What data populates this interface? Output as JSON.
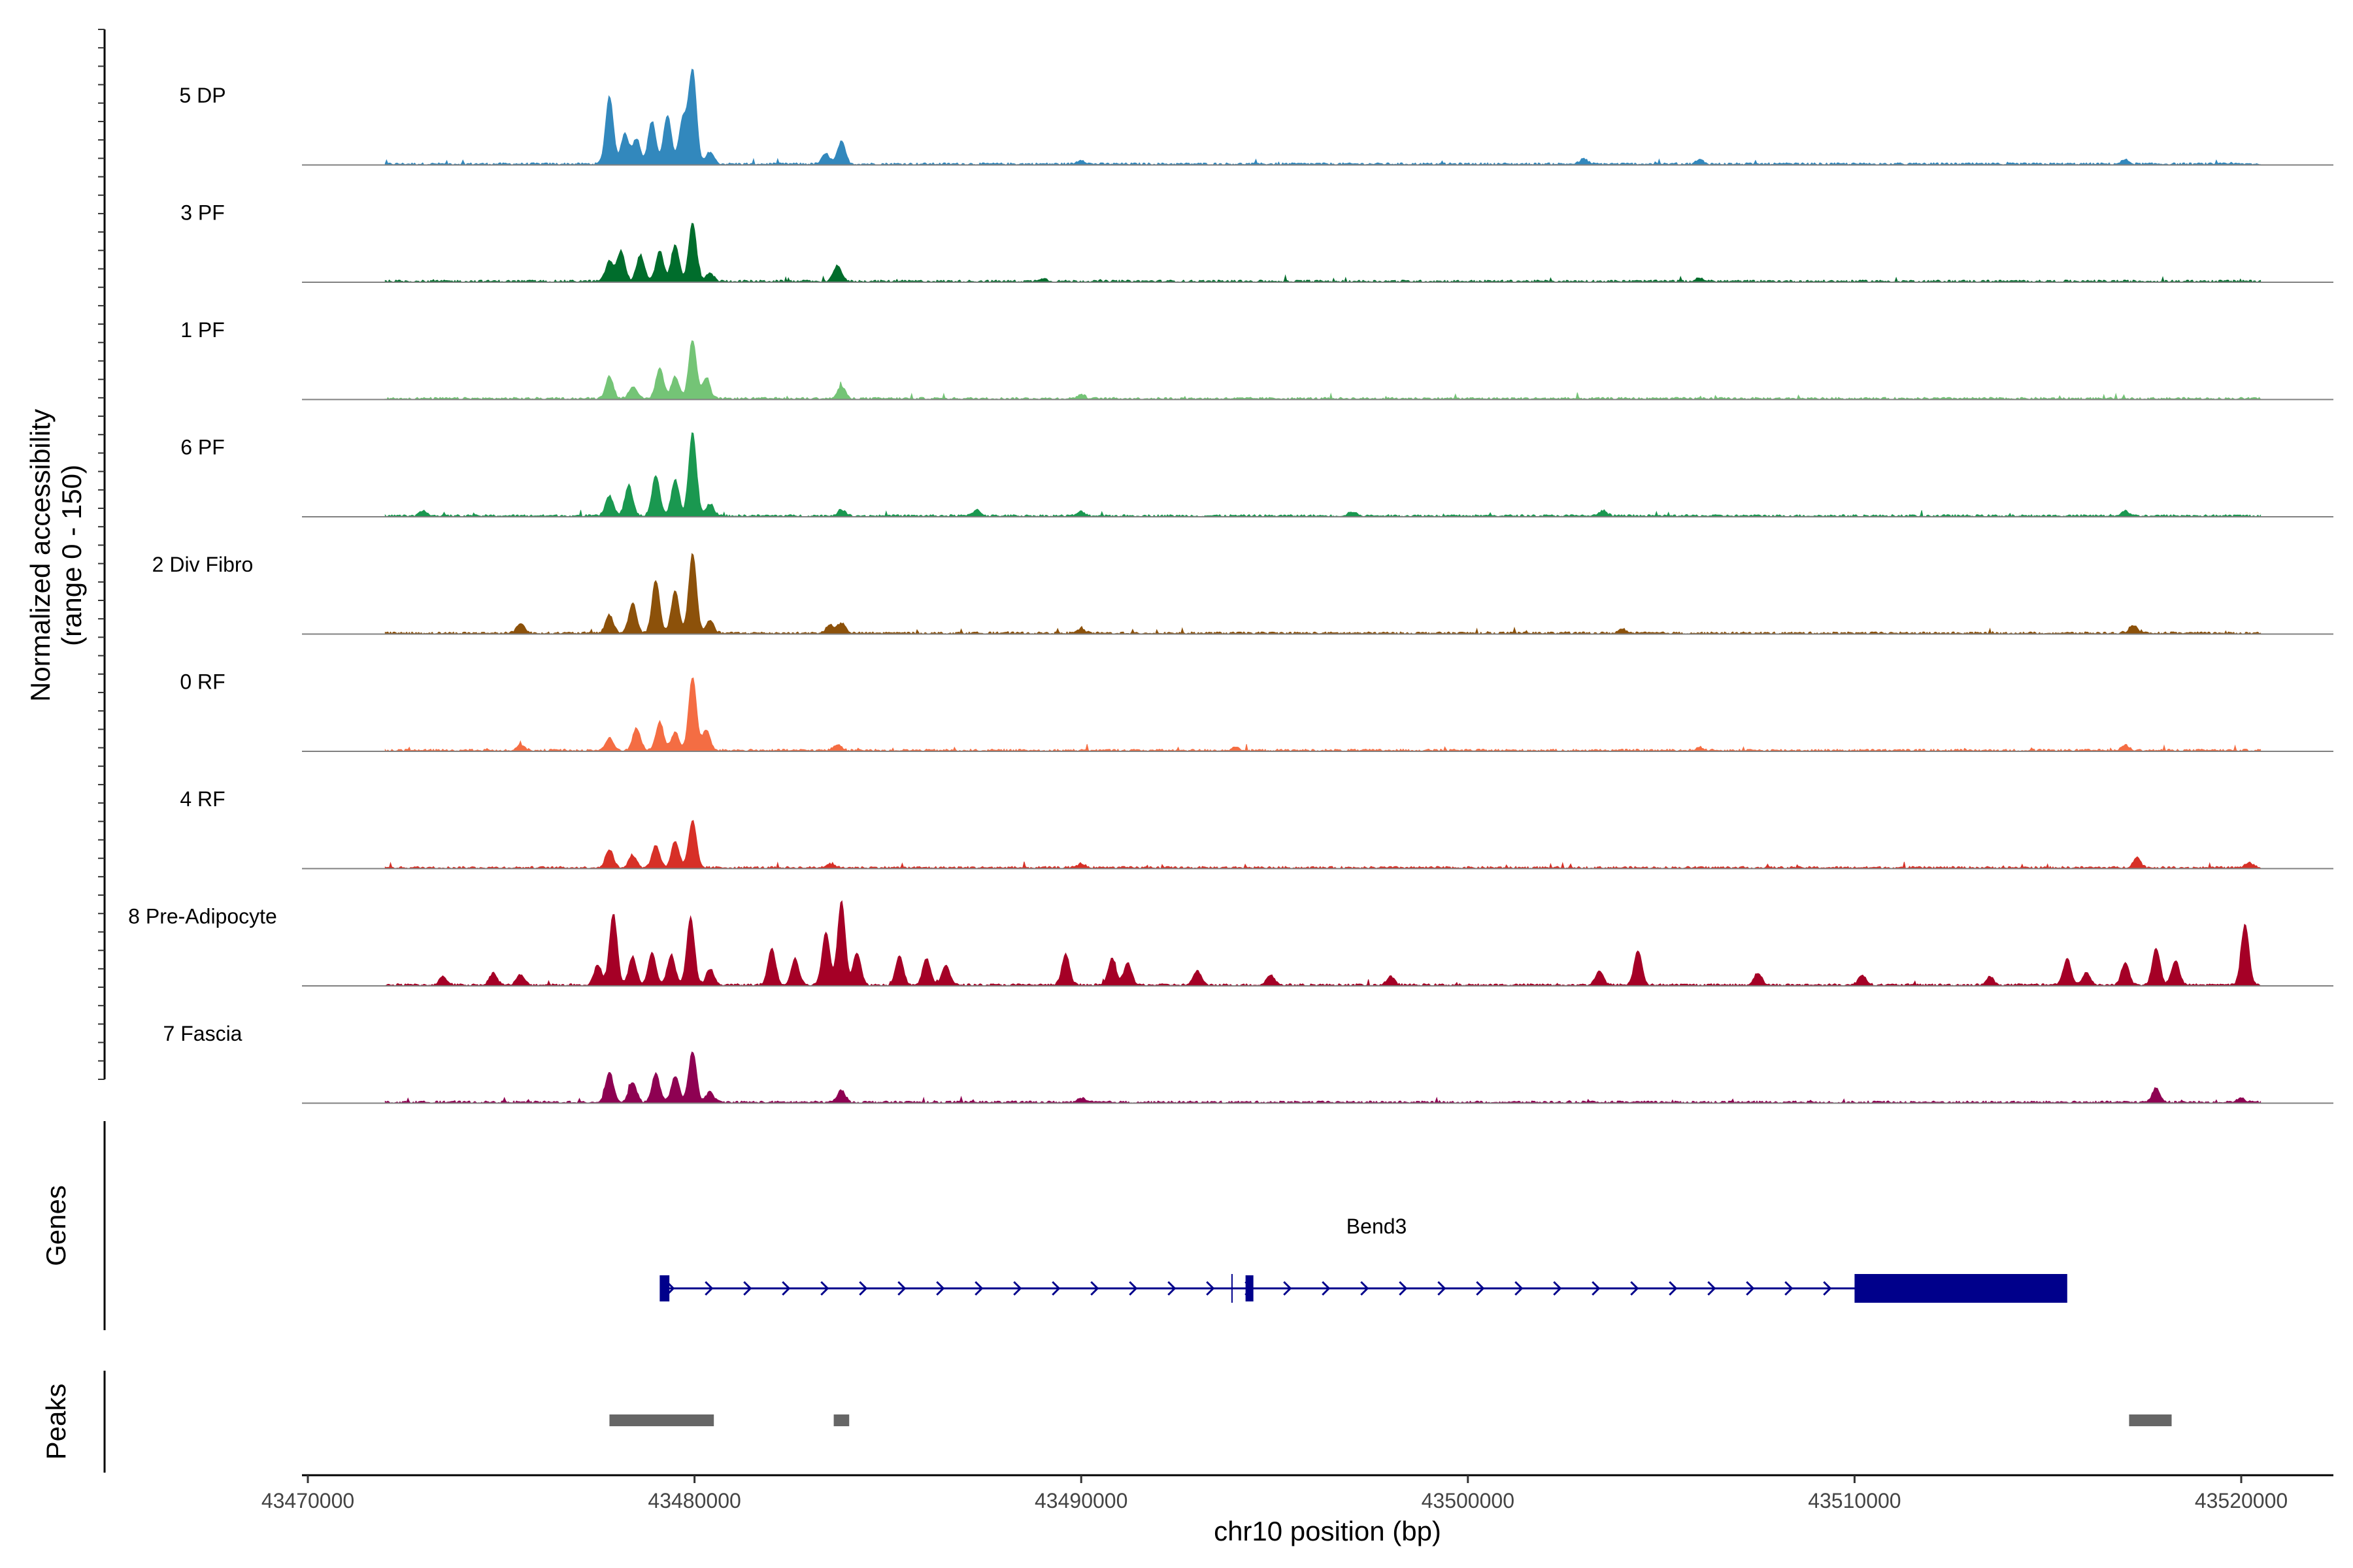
{
  "chart_data": {
    "type": "area",
    "title": "",
    "xlabel": "chr10 position (bp)",
    "ylabel": "Normalized accessibility\n(range 0 - 150)",
    "y_range": [
      0,
      150
    ],
    "xlim": [
      43470000,
      43523000
    ],
    "x_ticks": [
      43470000,
      43480000,
      43490000,
      43500000,
      43510000,
      43520000
    ],
    "x_tick_labels": [
      "43470000",
      "43480000",
      "43490000",
      "43500000",
      "43510000",
      "43520000"
    ],
    "tracks": [
      {
        "name": "5 DP",
        "color": "#3288bd",
        "peaks": [
          {
            "x": 43477800,
            "y": 66
          },
          {
            "x": 43478200,
            "y": 30
          },
          {
            "x": 43478500,
            "y": 25
          },
          {
            "x": 43478900,
            "y": 42
          },
          {
            "x": 43479300,
            "y": 48
          },
          {
            "x": 43479700,
            "y": 45
          },
          {
            "x": 43479950,
            "y": 92
          },
          {
            "x": 43480400,
            "y": 12
          },
          {
            "x": 43483400,
            "y": 10
          },
          {
            "x": 43483800,
            "y": 22
          },
          {
            "x": 43490000,
            "y": 4
          },
          {
            "x": 43503000,
            "y": 5
          },
          {
            "x": 43506000,
            "y": 4
          },
          {
            "x": 43517000,
            "y": 4
          }
        ]
      },
      {
        "name": "3 PF",
        "color": "#006d2c",
        "peaks": [
          {
            "x": 43477800,
            "y": 20
          },
          {
            "x": 43478100,
            "y": 30
          },
          {
            "x": 43478600,
            "y": 26
          },
          {
            "x": 43479100,
            "y": 30
          },
          {
            "x": 43479500,
            "y": 36
          },
          {
            "x": 43479950,
            "y": 58
          },
          {
            "x": 43480400,
            "y": 8
          },
          {
            "x": 43483700,
            "y": 16
          },
          {
            "x": 43489000,
            "y": 3
          },
          {
            "x": 43506000,
            "y": 3
          }
        ]
      },
      {
        "name": "1 PF",
        "color": "#74c476",
        "peaks": [
          {
            "x": 43477800,
            "y": 22
          },
          {
            "x": 43478400,
            "y": 12
          },
          {
            "x": 43479100,
            "y": 30
          },
          {
            "x": 43479500,
            "y": 22
          },
          {
            "x": 43479950,
            "y": 58
          },
          {
            "x": 43480300,
            "y": 20
          },
          {
            "x": 43483800,
            "y": 12
          },
          {
            "x": 43490000,
            "y": 4
          }
        ]
      },
      {
        "name": "6 PF",
        "color": "#1a9850",
        "peaks": [
          {
            "x": 43477800,
            "y": 20
          },
          {
            "x": 43478300,
            "y": 30
          },
          {
            "x": 43479000,
            "y": 40
          },
          {
            "x": 43479500,
            "y": 36
          },
          {
            "x": 43479950,
            "y": 82
          },
          {
            "x": 43480400,
            "y": 12
          },
          {
            "x": 43473000,
            "y": 5
          },
          {
            "x": 43483800,
            "y": 6
          },
          {
            "x": 43487300,
            "y": 6
          },
          {
            "x": 43490000,
            "y": 4
          },
          {
            "x": 43497000,
            "y": 4
          },
          {
            "x": 43503500,
            "y": 5
          },
          {
            "x": 43517000,
            "y": 5
          }
        ]
      },
      {
        "name": "2 Div Fibro",
        "color": "#8c510a",
        "peaks": [
          {
            "x": 43475500,
            "y": 10
          },
          {
            "x": 43477800,
            "y": 18
          },
          {
            "x": 43478400,
            "y": 30
          },
          {
            "x": 43479000,
            "y": 52
          },
          {
            "x": 43479500,
            "y": 42
          },
          {
            "x": 43479950,
            "y": 78
          },
          {
            "x": 43480400,
            "y": 12
          },
          {
            "x": 43483500,
            "y": 8
          },
          {
            "x": 43483800,
            "y": 10
          },
          {
            "x": 43490000,
            "y": 4
          },
          {
            "x": 43504000,
            "y": 4
          },
          {
            "x": 43517200,
            "y": 8
          }
        ]
      },
      {
        "name": "0 RF",
        "color": "#f46d43",
        "peaks": [
          {
            "x": 43475500,
            "y": 6
          },
          {
            "x": 43477800,
            "y": 12
          },
          {
            "x": 43478500,
            "y": 22
          },
          {
            "x": 43479100,
            "y": 28
          },
          {
            "x": 43479500,
            "y": 18
          },
          {
            "x": 43479950,
            "y": 72
          },
          {
            "x": 43480300,
            "y": 20
          },
          {
            "x": 43483700,
            "y": 6
          },
          {
            "x": 43494000,
            "y": 3
          },
          {
            "x": 43506000,
            "y": 3
          },
          {
            "x": 43517000,
            "y": 5
          }
        ]
      },
      {
        "name": "4 RF",
        "color": "#d73027",
        "peaks": [
          {
            "x": 43477800,
            "y": 18
          },
          {
            "x": 43478400,
            "y": 12
          },
          {
            "x": 43479000,
            "y": 22
          },
          {
            "x": 43479500,
            "y": 26
          },
          {
            "x": 43479950,
            "y": 46
          },
          {
            "x": 43483500,
            "y": 4
          },
          {
            "x": 43490000,
            "y": 4
          },
          {
            "x": 43517300,
            "y": 10
          },
          {
            "x": 43520200,
            "y": 5
          }
        ]
      },
      {
        "name": "8 Pre-Adipocyte",
        "color": "#a50026",
        "peaks": [
          {
            "x": 43473500,
            "y": 8
          },
          {
            "x": 43474800,
            "y": 12
          },
          {
            "x": 43475500,
            "y": 10
          },
          {
            "x": 43477500,
            "y": 20
          },
          {
            "x": 43477900,
            "y": 70
          },
          {
            "x": 43478400,
            "y": 28
          },
          {
            "x": 43478900,
            "y": 32
          },
          {
            "x": 43479400,
            "y": 30
          },
          {
            "x": 43479900,
            "y": 66
          },
          {
            "x": 43480400,
            "y": 16
          },
          {
            "x": 43482000,
            "y": 36
          },
          {
            "x": 43482600,
            "y": 26
          },
          {
            "x": 43483400,
            "y": 52
          },
          {
            "x": 43483800,
            "y": 82
          },
          {
            "x": 43484200,
            "y": 32
          },
          {
            "x": 43485300,
            "y": 28
          },
          {
            "x": 43486000,
            "y": 26
          },
          {
            "x": 43486500,
            "y": 20
          },
          {
            "x": 43489600,
            "y": 30
          },
          {
            "x": 43490800,
            "y": 26
          },
          {
            "x": 43491200,
            "y": 22
          },
          {
            "x": 43493000,
            "y": 14
          },
          {
            "x": 43494900,
            "y": 10
          },
          {
            "x": 43498000,
            "y": 8
          },
          {
            "x": 43503400,
            "y": 14
          },
          {
            "x": 43504400,
            "y": 34
          },
          {
            "x": 43507500,
            "y": 12
          },
          {
            "x": 43510200,
            "y": 10
          },
          {
            "x": 43513500,
            "y": 8
          },
          {
            "x": 43515500,
            "y": 26
          },
          {
            "x": 43516000,
            "y": 12
          },
          {
            "x": 43517000,
            "y": 22
          },
          {
            "x": 43517800,
            "y": 36
          },
          {
            "x": 43518300,
            "y": 24
          },
          {
            "x": 43520100,
            "y": 60
          }
        ]
      },
      {
        "name": "7 Fascia",
        "color": "#8e0152",
        "peaks": [
          {
            "x": 43477800,
            "y": 30
          },
          {
            "x": 43478400,
            "y": 20
          },
          {
            "x": 43479000,
            "y": 28
          },
          {
            "x": 43479500,
            "y": 26
          },
          {
            "x": 43479950,
            "y": 50
          },
          {
            "x": 43480400,
            "y": 10
          },
          {
            "x": 43483800,
            "y": 12
          },
          {
            "x": 43490000,
            "y": 4
          },
          {
            "x": 43517800,
            "y": 14
          },
          {
            "x": 43520000,
            "y": 4
          }
        ]
      }
    ],
    "genes_label": "Genes",
    "gene": {
      "name": "Bend3",
      "color": "#00008b",
      "strand": "+",
      "start": 43479200,
      "end": 43515400,
      "exons": [
        [
          43479100,
          43479350
        ],
        [
          43494250,
          43494450
        ],
        [
          43510000,
          43515500
        ]
      ],
      "extra_tick": 43493900
    },
    "peaks_label": "Peaks",
    "peak_color": "#666666",
    "peak_regions": [
      [
        43477800,
        43480500
      ],
      [
        43483600,
        43484000
      ],
      [
        43517100,
        43518200
      ]
    ]
  }
}
